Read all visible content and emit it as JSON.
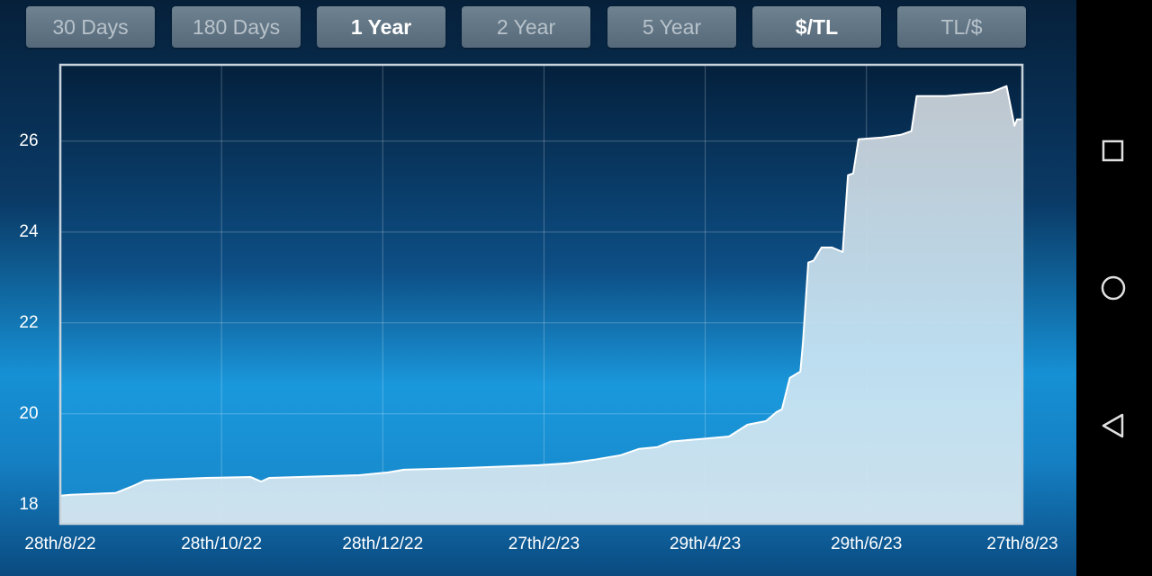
{
  "buttons": [
    {
      "label": "30 Days",
      "selected": false
    },
    {
      "label": "180 Days",
      "selected": false
    },
    {
      "label": "1 Year",
      "selected": true
    },
    {
      "label": "2 Year",
      "selected": false
    },
    {
      "label": "5 Year",
      "selected": false
    },
    {
      "label": "$/TL",
      "selected": true
    },
    {
      "label": "TL/$",
      "selected": false
    }
  ],
  "chart_data": {
    "type": "area",
    "x": [
      "2022-08-28",
      "2022-09-01",
      "2022-09-18",
      "2022-09-24",
      "2022-09-29",
      "2022-10-05",
      "2022-10-22",
      "2022-11-08",
      "2022-11-12",
      "2022-11-15",
      "2022-12-19",
      "2022-12-30",
      "2023-01-05",
      "2023-01-29",
      "2023-02-25",
      "2023-03-08",
      "2023-03-18",
      "2023-03-28",
      "2023-04-04",
      "2023-04-11",
      "2023-04-16",
      "2023-04-28",
      "2023-05-08",
      "2023-05-15",
      "2023-05-22",
      "2023-05-26",
      "2023-05-28",
      "2023-05-31",
      "2023-06-04",
      "2023-06-05",
      "2023-06-07",
      "2023-06-09",
      "2023-06-12",
      "2023-06-16",
      "2023-06-20",
      "2023-06-22",
      "2023-06-24",
      "2023-06-26",
      "2023-07-05",
      "2023-07-12",
      "2023-07-16",
      "2023-07-18",
      "2023-07-29",
      "2023-08-15",
      "2023-08-21",
      "2023-08-24",
      "2023-08-25",
      "2023-08-27"
    ],
    "series": [
      {
        "color": "#ffffff",
        "values": [
          18.2,
          18.22,
          18.26,
          18.4,
          18.53,
          18.55,
          18.59,
          18.61,
          18.51,
          18.59,
          18.65,
          18.71,
          18.77,
          18.81,
          18.87,
          18.91,
          18.99,
          19.09,
          19.23,
          19.27,
          19.39,
          19.45,
          19.5,
          19.76,
          19.84,
          20.04,
          20.1,
          20.79,
          20.93,
          21.58,
          23.33,
          23.37,
          23.66,
          23.66,
          23.56,
          25.25,
          25.29,
          26.04,
          26.08,
          26.14,
          26.22,
          26.99,
          26.99,
          27.07,
          27.21,
          26.34,
          26.48,
          26.48
        ]
      }
    ],
    "xlim": [
      "2022-08-28",
      "2023-08-27"
    ],
    "xticks": [
      {
        "value": "2022-08-28",
        "label": "28th/8/22"
      },
      {
        "value": "2022-10-28",
        "label": "28th/10/22"
      },
      {
        "value": "2022-12-28",
        "label": "28th/12/22"
      },
      {
        "value": "2023-02-27",
        "label": "27th/2/23"
      },
      {
        "value": "2023-04-29",
        "label": "29th/4/23"
      },
      {
        "value": "2023-06-29",
        "label": "29th/6/23"
      },
      {
        "value": "2023-08-27",
        "label": "27th/8/23"
      }
    ],
    "ylim": [
      17.58,
      27.68
    ],
    "yticks": [
      18,
      20,
      22,
      24,
      26
    ],
    "grid": true
  }
}
